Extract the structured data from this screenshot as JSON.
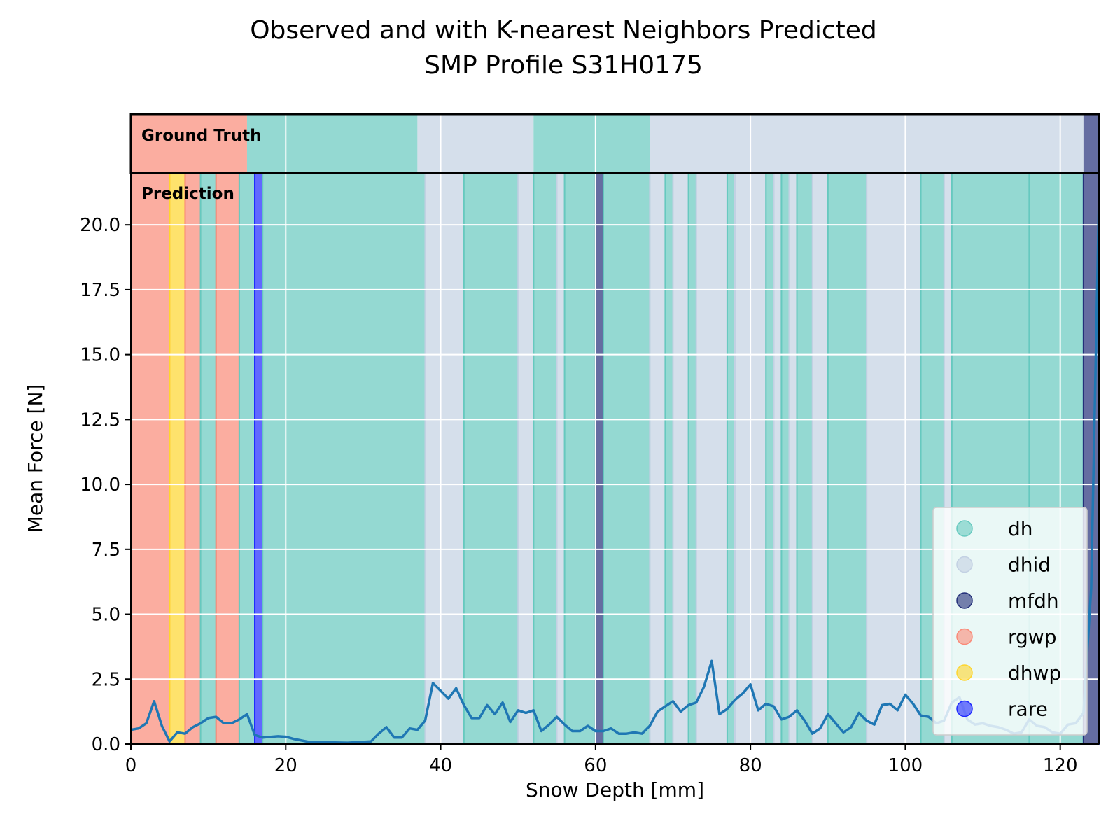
{
  "chart_data": {
    "type": "line",
    "title": "Observed and with K-nearest Neighbors Predicted",
    "subtitle": "SMP Profile S31H0175",
    "xlabel": "Snow Depth [mm]",
    "ylabel": "Mean Force [N]",
    "xlim": [
      0,
      125
    ],
    "ylim": [
      0,
      22
    ],
    "xticks": [
      "0",
      "20",
      "40",
      "60",
      "80",
      "100",
      "120"
    ],
    "yticks": [
      "0.0",
      "2.5",
      "5.0",
      "7.5",
      "10.0",
      "12.5",
      "15.0",
      "17.5",
      "20.0"
    ],
    "grid": true,
    "legend_position": "lower-right",
    "panel_labels": {
      "ground_truth": "Ground Truth",
      "prediction": "Prediction"
    },
    "classes": [
      {
        "name": "dh",
        "color": "#66c9bf"
      },
      {
        "name": "dhid",
        "color": "#c3d1e3"
      },
      {
        "name": "mfdh",
        "color": "#232f79"
      },
      {
        "name": "rgwp",
        "color": "#fa8a78"
      },
      {
        "name": "dhwp",
        "color": "#fed52d"
      },
      {
        "name": "rare",
        "color": "#1e28ff"
      }
    ],
    "ground_truth_segments": [
      {
        "start": 0,
        "end": 15,
        "label": "rgwp"
      },
      {
        "start": 15,
        "end": 37,
        "label": "dh"
      },
      {
        "start": 37,
        "end": 52,
        "label": "dhid"
      },
      {
        "start": 52,
        "end": 67,
        "label": "dh"
      },
      {
        "start": 67,
        "end": 123,
        "label": "dhid"
      },
      {
        "start": 123,
        "end": 125,
        "label": "mfdh"
      }
    ],
    "prediction_segments": [
      {
        "start": 0,
        "end": 5,
        "label": "rgwp"
      },
      {
        "start": 5,
        "end": 7,
        "label": "dhwp"
      },
      {
        "start": 7,
        "end": 9,
        "label": "rgwp"
      },
      {
        "start": 9,
        "end": 11,
        "label": "dh"
      },
      {
        "start": 11,
        "end": 14,
        "label": "rgwp"
      },
      {
        "start": 14,
        "end": 16,
        "label": "dh"
      },
      {
        "start": 16,
        "end": 17,
        "label": "rare"
      },
      {
        "start": 17,
        "end": 38,
        "label": "dh"
      },
      {
        "start": 38,
        "end": 43,
        "label": "dhid"
      },
      {
        "start": 43,
        "end": 50,
        "label": "dh"
      },
      {
        "start": 50,
        "end": 52,
        "label": "dhid"
      },
      {
        "start": 52,
        "end": 55,
        "label": "dh"
      },
      {
        "start": 55,
        "end": 56,
        "label": "dhid"
      },
      {
        "start": 56,
        "end": 60,
        "label": "dh"
      },
      {
        "start": 60,
        "end": 61,
        "label": "mfdh"
      },
      {
        "start": 61,
        "end": 67,
        "label": "dh"
      },
      {
        "start": 67,
        "end": 69,
        "label": "dhid"
      },
      {
        "start": 69,
        "end": 70,
        "label": "dh"
      },
      {
        "start": 70,
        "end": 72,
        "label": "dhid"
      },
      {
        "start": 72,
        "end": 73,
        "label": "dh"
      },
      {
        "start": 73,
        "end": 77,
        "label": "dhid"
      },
      {
        "start": 77,
        "end": 78,
        "label": "dh"
      },
      {
        "start": 78,
        "end": 82,
        "label": "dhid"
      },
      {
        "start": 82,
        "end": 83,
        "label": "dh"
      },
      {
        "start": 83,
        "end": 84,
        "label": "dhid"
      },
      {
        "start": 84,
        "end": 85,
        "label": "dh"
      },
      {
        "start": 85,
        "end": 86,
        "label": "dhid"
      },
      {
        "start": 86,
        "end": 88,
        "label": "dh"
      },
      {
        "start": 88,
        "end": 90,
        "label": "dhid"
      },
      {
        "start": 90,
        "end": 95,
        "label": "dh"
      },
      {
        "start": 95,
        "end": 102,
        "label": "dhid"
      },
      {
        "start": 102,
        "end": 105,
        "label": "dh"
      },
      {
        "start": 105,
        "end": 106,
        "label": "dhid"
      },
      {
        "start": 106,
        "end": 116,
        "label": "dh"
      },
      {
        "start": 116,
        "end": 123,
        "label": "dh"
      },
      {
        "start": 123,
        "end": 125,
        "label": "mfdh"
      }
    ],
    "series": [
      {
        "color": "#1f77b4",
        "x": [
          0,
          1,
          2,
          3,
          4,
          5,
          6,
          7,
          8,
          9,
          10,
          11,
          12,
          13,
          14,
          15,
          16,
          17,
          19,
          20,
          21,
          23,
          28,
          31,
          32,
          33,
          34,
          35,
          36,
          37,
          38,
          39,
          40,
          41,
          42,
          43,
          44,
          45,
          46,
          47,
          48,
          49,
          50,
          51,
          52,
          53,
          54,
          55,
          56,
          57,
          58,
          59,
          60,
          61,
          62,
          63,
          64,
          65,
          66,
          67,
          68,
          69,
          70,
          71,
          72,
          73,
          74,
          75,
          76,
          77,
          78,
          79,
          80,
          81,
          82,
          83,
          84,
          85,
          86,
          87,
          88,
          89,
          90,
          91,
          92,
          93,
          94,
          95,
          96,
          97,
          98,
          99,
          100,
          101,
          102,
          103,
          104,
          105,
          106,
          107,
          108,
          109,
          110,
          111,
          112,
          113,
          114,
          115,
          116,
          117,
          118,
          119,
          120,
          121,
          122,
          123,
          124,
          125
        ],
        "y": [
          0.55,
          0.6,
          0.8,
          1.65,
          0.7,
          0.1,
          0.45,
          0.4,
          0.65,
          0.8,
          1.0,
          1.05,
          0.8,
          0.8,
          0.95,
          1.15,
          0.35,
          0.25,
          0.3,
          0.28,
          0.2,
          0.08,
          0.05,
          0.1,
          0.4,
          0.65,
          0.25,
          0.25,
          0.6,
          0.55,
          0.9,
          2.35,
          2.05,
          1.75,
          2.15,
          1.5,
          1.0,
          1.0,
          1.5,
          1.15,
          1.6,
          0.85,
          1.3,
          1.2,
          1.3,
          0.5,
          0.75,
          1.05,
          0.75,
          0.5,
          0.5,
          0.7,
          0.5,
          0.5,
          0.6,
          0.4,
          0.4,
          0.45,
          0.4,
          0.7,
          1.25,
          1.45,
          1.65,
          1.25,
          1.5,
          1.6,
          2.2,
          3.2,
          1.15,
          1.35,
          1.7,
          1.95,
          2.3,
          1.3,
          1.55,
          1.45,
          0.95,
          1.05,
          1.3,
          0.9,
          0.4,
          0.6,
          1.15,
          0.8,
          0.45,
          0.65,
          1.2,
          0.9,
          0.75,
          1.5,
          1.55,
          1.3,
          1.9,
          1.55,
          1.1,
          1.05,
          0.8,
          0.9,
          1.6,
          1.8,
          0.95,
          0.75,
          0.8,
          0.7,
          0.65,
          0.55,
          0.4,
          0.45,
          0.95,
          0.7,
          0.65,
          0.45,
          0.4,
          0.75,
          0.8,
          1.2,
          6.0,
          21.0
        ]
      }
    ]
  }
}
